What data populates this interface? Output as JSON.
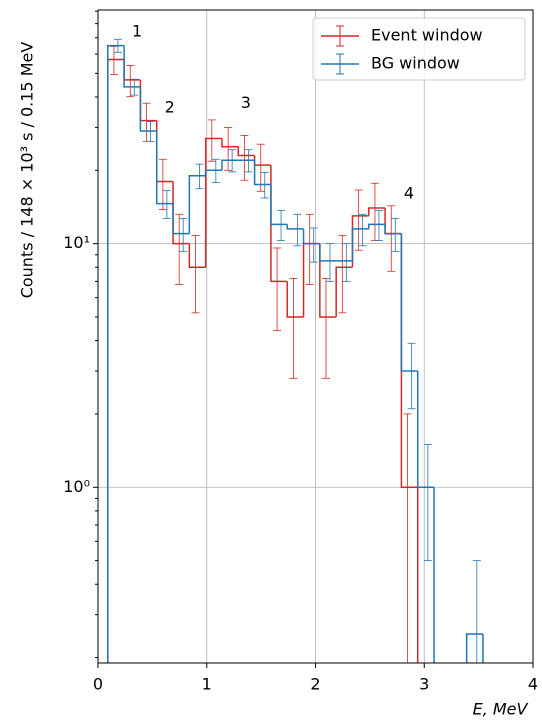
{
  "chart_data": {
    "type": "histogram",
    "xlabel": "E, MeV",
    "ylabel": "Counts / 148 × 10³ s / 0.15 MeV",
    "bins": [
      0.09,
      0.24,
      0.39,
      0.54,
      0.69,
      0.84,
      0.99,
      1.14,
      1.29,
      1.44,
      1.59,
      1.74,
      1.89,
      2.04,
      2.19,
      2.34,
      2.49,
      2.64,
      2.79,
      2.94,
      3.09,
      3.24,
      3.39,
      3.54,
      3.69
    ],
    "series": [
      {
        "name": "Event window",
        "color": "#d62728",
        "values": [
          57,
          47,
          32,
          18,
          10,
          8,
          27,
          25,
          23,
          21,
          7,
          5,
          10,
          5,
          8,
          13,
          14,
          11,
          1,
          0,
          0,
          0,
          0,
          0
        ],
        "errors": [
          7.5,
          6.9,
          5.7,
          4.2,
          3.2,
          2.8,
          5.2,
          5,
          4.8,
          4.6,
          2.6,
          2.2,
          3.2,
          2.2,
          2.8,
          3.6,
          3.7,
          3.3,
          1,
          null,
          null,
          null,
          null,
          null
        ]
      },
      {
        "name": "BG window",
        "color": "#1f77b4",
        "values": [
          65,
          44,
          29,
          14.6,
          11,
          19,
          20,
          22,
          22,
          17.5,
          12,
          11.5,
          10,
          8.5,
          8.5,
          11.5,
          12,
          11,
          3,
          1,
          0,
          0,
          0.25,
          0
        ],
        "errors": [
          4,
          3.3,
          2.7,
          1.9,
          1.7,
          2.2,
          2.2,
          2.3,
          2.3,
          2.1,
          1.7,
          1.7,
          1.6,
          1.5,
          1.5,
          1.7,
          1.7,
          1.7,
          0.9,
          0.5,
          null,
          null,
          0.25,
          null
        ]
      }
    ],
    "annotations": [
      {
        "text": "1",
        "x": 0.36,
        "y": 74
      },
      {
        "text": "2",
        "x": 0.66,
        "y": 36
      },
      {
        "text": "3",
        "x": 1.36,
        "y": 37.6
      },
      {
        "text": "4",
        "x": 2.86,
        "y": 16
      }
    ],
    "xlim": [
      0,
      4
    ],
    "xticks": [
      0,
      1,
      2,
      3,
      4
    ],
    "ylim": [
      0.19,
      91
    ],
    "log_y": true,
    "yticks": [
      {
        "value": 1,
        "label": "10⁰"
      },
      {
        "value": 10,
        "label": "10¹"
      }
    ],
    "yminorticks": [
      0.2,
      0.3,
      0.4,
      0.5,
      0.6,
      0.7,
      0.8,
      0.9,
      2,
      3,
      4,
      5,
      6,
      7,
      8,
      9,
      20,
      30,
      40,
      50,
      60,
      70,
      80,
      90
    ],
    "grid": true,
    "legend": "upper right"
  }
}
